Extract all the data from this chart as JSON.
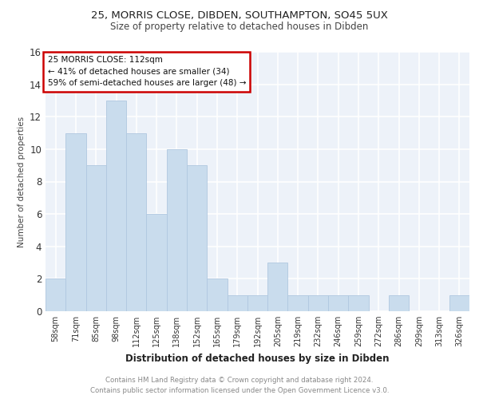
{
  "title1": "25, MORRIS CLOSE, DIBDEN, SOUTHAMPTON, SO45 5UX",
  "title2": "Size of property relative to detached houses in Dibden",
  "xlabel": "Distribution of detached houses by size in Dibden",
  "ylabel": "Number of detached properties",
  "categories": [
    "58sqm",
    "71sqm",
    "85sqm",
    "98sqm",
    "112sqm",
    "125sqm",
    "138sqm",
    "152sqm",
    "165sqm",
    "179sqm",
    "192sqm",
    "205sqm",
    "219sqm",
    "232sqm",
    "246sqm",
    "259sqm",
    "272sqm",
    "286sqm",
    "299sqm",
    "313sqm",
    "326sqm"
  ],
  "values": [
    2,
    11,
    9,
    13,
    11,
    6,
    10,
    9,
    2,
    1,
    1,
    3,
    1,
    1,
    1,
    1,
    0,
    1,
    0,
    0,
    1
  ],
  "bar_color": "#c9dced",
  "bar_edge_color": "#b0c8e0",
  "ylim": [
    0,
    16
  ],
  "yticks": [
    0,
    2,
    4,
    6,
    8,
    10,
    12,
    14,
    16
  ],
  "annotation_box_text": "25 MORRIS CLOSE: 112sqm\n← 41% of detached houses are smaller (34)\n59% of semi-detached houses are larger (48) →",
  "annotation_box_color": "#ffffff",
  "annotation_box_edge_color": "#cc0000",
  "footer_line1": "Contains HM Land Registry data © Crown copyright and database right 2024.",
  "footer_line2": "Contains public sector information licensed under the Open Government Licence v3.0.",
  "highlight_bar_index": 4,
  "background_color": "#edf2f9",
  "grid_color": "#ffffff"
}
